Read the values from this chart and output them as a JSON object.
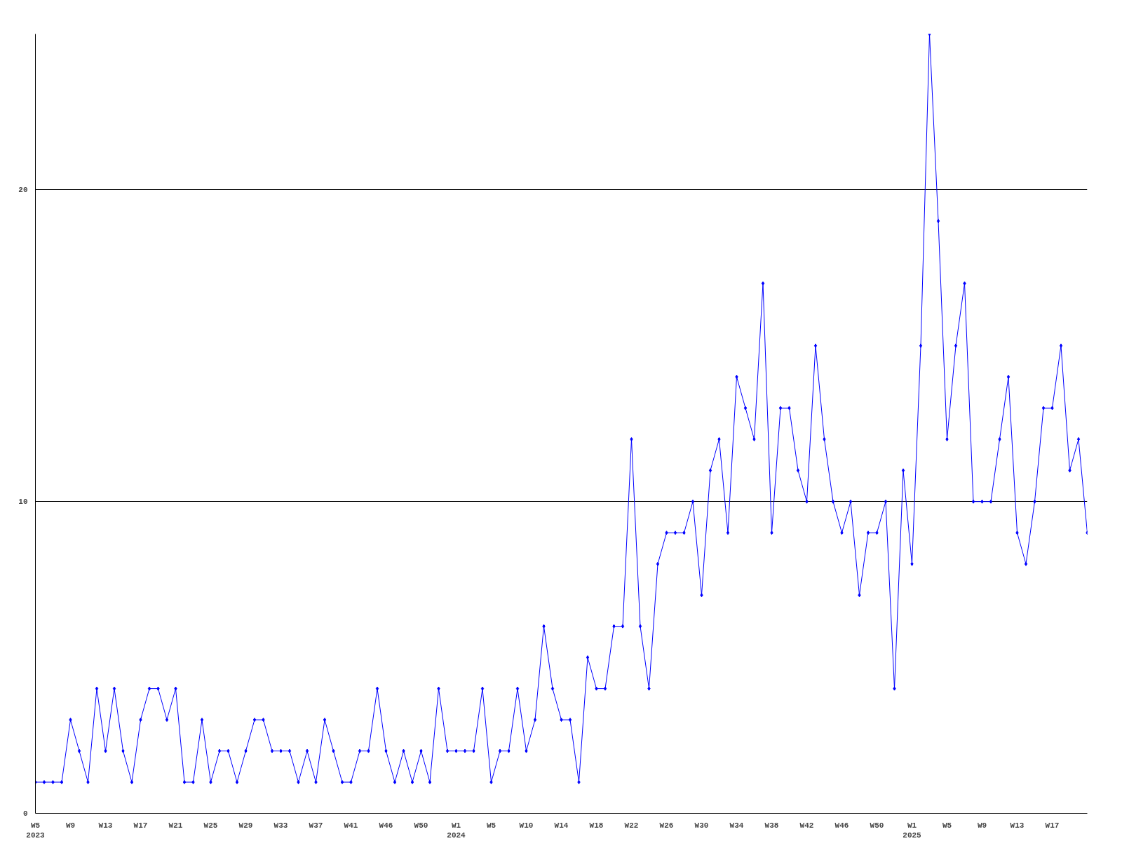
{
  "chart_data": {
    "type": "line",
    "categories": [
      "W5\n2023",
      null,
      null,
      null,
      "W9",
      null,
      null,
      null,
      "W13",
      null,
      null,
      null,
      "W17",
      null,
      null,
      null,
      "W21",
      null,
      null,
      null,
      "W25",
      null,
      null,
      null,
      "W29",
      null,
      null,
      null,
      "W33",
      null,
      null,
      null,
      "W37",
      null,
      null,
      null,
      "W41",
      null,
      null,
      null,
      "W46",
      null,
      null,
      null,
      "W50",
      null,
      null,
      null,
      "W1\n2024",
      null,
      null,
      null,
      "W5",
      null,
      null,
      null,
      "W10",
      null,
      null,
      null,
      "W14",
      null,
      null,
      null,
      "W18",
      null,
      null,
      null,
      "W22",
      null,
      null,
      null,
      "W26",
      null,
      null,
      null,
      "W30",
      null,
      null,
      null,
      "W34",
      null,
      null,
      null,
      "W38",
      null,
      null,
      null,
      "W42",
      null,
      null,
      null,
      "W46",
      null,
      null,
      null,
      "W50",
      null,
      null,
      null,
      "W1\n2025",
      null,
      null,
      null,
      "W5",
      null,
      null,
      null,
      "W9",
      null,
      null,
      null,
      "W13",
      null,
      null,
      null,
      "W17",
      null,
      null,
      null,
      null
    ],
    "series": [
      {
        "color": "#0000ff",
        "values": [
          1,
          1,
          1,
          1,
          3,
          2,
          1,
          4,
          2,
          4,
          2,
          1,
          3,
          4,
          4,
          3,
          4,
          1,
          1,
          3,
          1,
          2,
          2,
          1,
          2,
          3,
          3,
          2,
          2,
          2,
          1,
          2,
          1,
          3,
          2,
          1,
          1,
          2,
          2,
          4,
          2,
          1,
          2,
          1,
          2,
          1,
          4,
          2,
          2,
          2,
          2,
          4,
          1,
          2,
          2,
          4,
          2,
          3,
          6,
          4,
          3,
          3,
          1,
          5,
          4,
          4,
          6,
          6,
          12,
          6,
          4,
          8,
          9,
          9,
          9,
          10,
          7,
          11,
          12,
          9,
          14,
          13,
          12,
          17,
          9,
          13,
          13,
          11,
          10,
          15,
          12,
          10,
          9,
          10,
          7,
          9,
          9,
          10,
          4,
          11,
          8,
          15,
          25,
          19,
          12,
          15,
          17,
          10,
          10,
          10,
          12,
          14,
          9,
          8,
          10,
          13,
          13,
          15,
          11,
          12,
          9
        ]
      }
    ],
    "ylim": [
      0,
      25
    ],
    "yticks": [
      0,
      10,
      20
    ],
    "grid": "y",
    "marker": "diamond",
    "line_style": "solid"
  }
}
